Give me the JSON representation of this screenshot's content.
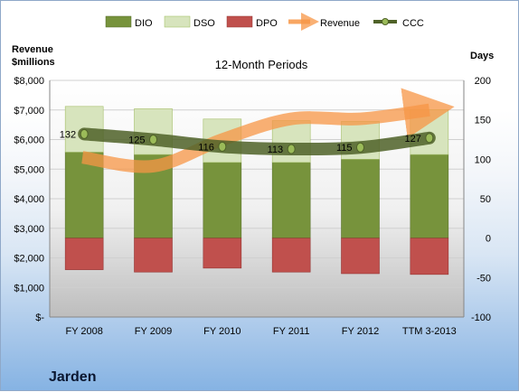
{
  "chart_data": {
    "type": "bar",
    "title": "12-Month Periods",
    "company": "Jarden",
    "categories": [
      "FY 2008",
      "FY 2009",
      "FY 2010",
      "FY 2011",
      "FY 2012",
      "TTM 3-2013"
    ],
    "left_axis": {
      "label_line1": "Revenue",
      "label_line2": "$millions",
      "range": [
        0,
        8000
      ],
      "ticks": [
        "$-",
        "$1,000",
        "$2,000",
        "$3,000",
        "$4,000",
        "$5,000",
        "$6,000",
        "$7,000",
        "$8,000"
      ]
    },
    "right_axis": {
      "label": "Days",
      "range": [
        -100,
        200
      ],
      "ticks": [
        "-100",
        "-50",
        "0",
        "50",
        "100",
        "150",
        "200"
      ]
    },
    "series": [
      {
        "name": "DIO",
        "color": "#77933c",
        "values": [
          109,
          106,
          96,
          96,
          100,
          106
        ]
      },
      {
        "name": "DSO",
        "color": "#d7e4bd",
        "values": [
          58,
          58,
          55,
          53,
          48,
          57
        ]
      },
      {
        "name": "DPO",
        "color": "#c0504d",
        "values": [
          -40,
          -43,
          -38,
          -43,
          -45,
          -46
        ]
      },
      {
        "name": "Revenue",
        "color": "#f79646",
        "values": [
          5400,
          5100,
          6000,
          6700,
          6700,
          7000
        ]
      },
      {
        "name": "CCC",
        "color": "#4f6228",
        "values": [
          132,
          125,
          116,
          113,
          115,
          127
        ]
      }
    ],
    "ccc_labels": [
      "132",
      "125",
      "116",
      "113",
      "115",
      "127"
    ],
    "legend_position": "top"
  }
}
